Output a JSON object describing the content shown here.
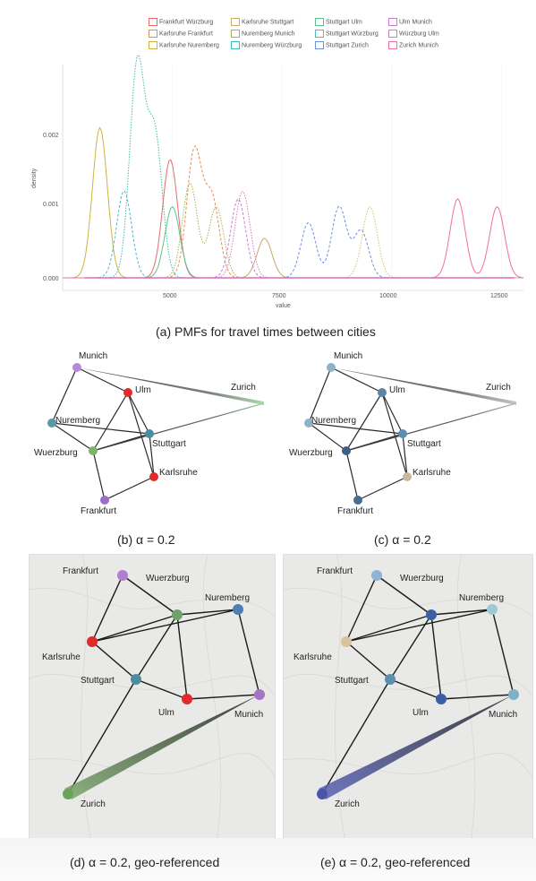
{
  "legend": [
    {
      "label": "Frankfurt Würzburg",
      "color": "#e66b6b"
    },
    {
      "label": "Karlsruhe Stuttgart",
      "color": "#c8a96a"
    },
    {
      "label": "Stuttgart Ulm",
      "color": "#5fbf8f"
    },
    {
      "label": "Ulm Munich",
      "color": "#c979d8"
    },
    {
      "label": "Karlsruhe Frankfurt",
      "color": "#e58d5a"
    },
    {
      "label": "Nuremberg Munich",
      "color": "#a6b44a"
    },
    {
      "label": "Stuttgart Würzburg",
      "color": "#4fb7c8"
    },
    {
      "label": "Würzburg Ulm",
      "color": "#d67bc4"
    },
    {
      "label": "Karlsruhe Nuremberg",
      "color": "#d1b23e"
    },
    {
      "label": "Nuremberg Würzburg",
      "color": "#3fbcb0"
    },
    {
      "label": "Stuttgart Zurich",
      "color": "#6f8fe0"
    },
    {
      "label": "Zurich Munich",
      "color": "#ef6fa5"
    }
  ],
  "chart_data": {
    "type": "line",
    "xlabel": "value",
    "ylabel": "density",
    "xlim": [
      2500,
      13000
    ],
    "ylim": [
      0,
      0.0027
    ],
    "xticks": [
      "5000",
      "7500",
      "10000",
      "12500"
    ],
    "yticks": [
      "0.000",
      "0.001",
      "0.002"
    ],
    "series": [
      {
        "name": "Karlsruhe Nuremberg",
        "color": "#d1b23e",
        "peaks": [
          [
            3350,
            0.0019
          ]
        ]
      },
      {
        "name": "Stuttgart Würzburg",
        "color": "#4fb7c8",
        "peaks": [
          [
            3900,
            0.0011
          ]
        ]
      },
      {
        "name": "Nuremberg Würzburg",
        "color": "#3fbcb0",
        "peaks": [
          [
            4200,
            0.0027
          ],
          [
            4600,
            0.0018
          ]
        ]
      },
      {
        "name": "Frankfurt Würzburg",
        "color": "#e66b6b",
        "peaks": [
          [
            4950,
            0.0015
          ]
        ]
      },
      {
        "name": "Karlsruhe Frankfurt",
        "color": "#e58d5a",
        "peaks": [
          [
            5500,
            0.0016
          ],
          [
            5900,
            0.001
          ]
        ]
      },
      {
        "name": "Nuremberg Munich",
        "color": "#a6b44a",
        "peaks": [
          [
            5400,
            0.0012
          ],
          [
            6000,
            0.0009
          ]
        ]
      },
      {
        "name": "Stuttgart Ulm",
        "color": "#5fbf8f",
        "peaks": [
          [
            5000,
            0.0009
          ]
        ]
      },
      {
        "name": "Ulm Munich",
        "color": "#c979d8",
        "peaks": [
          [
            6500,
            0.001
          ]
        ]
      },
      {
        "name": "Würzburg Ulm",
        "color": "#d67bc4",
        "peaks": [
          [
            6600,
            0.0011
          ]
        ]
      },
      {
        "name": "Karlsruhe Stuttgart",
        "color": "#c8a96a",
        "peaks": [
          [
            7100,
            0.0005
          ]
        ]
      },
      {
        "name": "Stuttgart Zurich",
        "color": "#6f8fe0",
        "peaks": [
          [
            8100,
            0.0007
          ],
          [
            8800,
            0.0009
          ],
          [
            9300,
            0.0006
          ]
        ]
      },
      {
        "name": "Karlsruhe Stuttgart",
        "color": "#d5c06a",
        "peaks": [
          [
            9500,
            0.0009
          ]
        ]
      },
      {
        "name": "Zurich Munich",
        "color": "#ef6fa5",
        "peaks": [
          [
            11500,
            0.001
          ],
          [
            12400,
            0.0009
          ]
        ]
      }
    ]
  },
  "captions": {
    "a": "(a) PMFs for travel times between cities",
    "b": "(b) α = 0.2",
    "c": "(c) α = 0.2",
    "d": "(d) α = 0.2, geo-referenced",
    "e": "(e) α = 0.2, geo-referenced"
  },
  "cities": {
    "munich": "Munich",
    "ulm": "Ulm",
    "zurich": "Zurich",
    "nuremberg": "Nuremberg",
    "wuerzburg": "Wuerzburg",
    "stuttgart": "Stuttgart",
    "karlsruhe": "Karlsruhe",
    "frankfurt": "Frankfurt"
  }
}
